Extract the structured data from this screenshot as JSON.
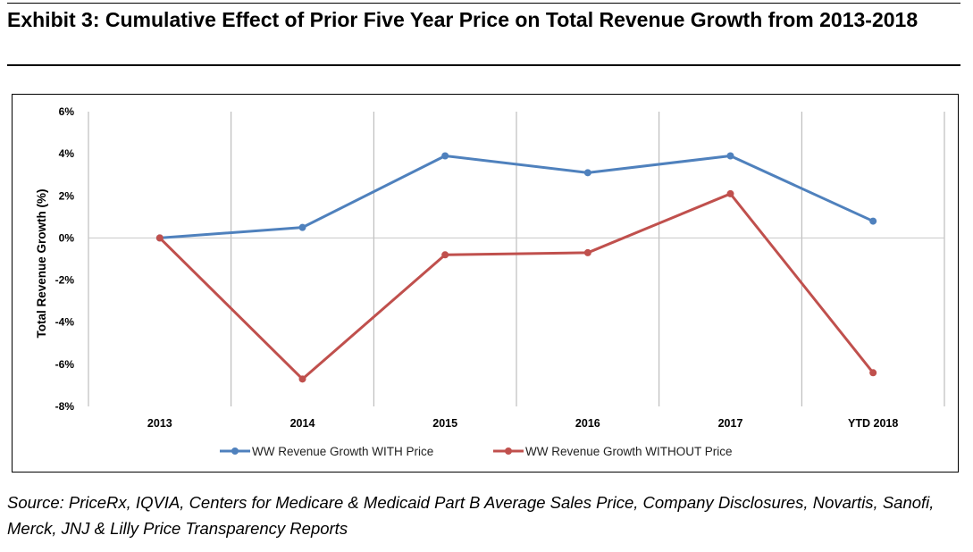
{
  "header": {
    "title": "Exhibit 3: Cumulative Effect of Prior Five Year Price on Total Revenue Growth from 2013-2018"
  },
  "footer": {
    "source": "Source: PriceRx, IQVIA, Centers for Medicare & Medicaid Part B Average Sales Price, Company Disclosures, Novartis, Sanofi, Merck, JNJ & Lilly Price Transparency Reports"
  },
  "chart_data": {
    "type": "line",
    "title": "",
    "xlabel": "",
    "ylabel": "Total Revenue Growth (%)",
    "categories": [
      "2013",
      "2014",
      "2015",
      "2016",
      "2017",
      "YTD 2018"
    ],
    "ylim": [
      -8,
      6
    ],
    "yticks": [
      -8,
      -6,
      -4,
      -2,
      0,
      2,
      4,
      6
    ],
    "ytick_labels": [
      "-8%",
      "-6%",
      "-4%",
      "-2%",
      "0%",
      "2%",
      "4%",
      "6%"
    ],
    "grid": "vertical and zero line",
    "legend_position": "bottom",
    "series": [
      {
        "name": "WW Revenue Growth WITH Price",
        "color": "#4f81bd",
        "values": [
          0.0,
          0.5,
          3.9,
          3.1,
          3.9,
          0.8
        ]
      },
      {
        "name": "WW Revenue Growth WITHOUT Price",
        "color": "#c0504d",
        "values": [
          0.0,
          -6.7,
          -0.8,
          -0.7,
          2.1,
          -6.4
        ]
      }
    ]
  }
}
